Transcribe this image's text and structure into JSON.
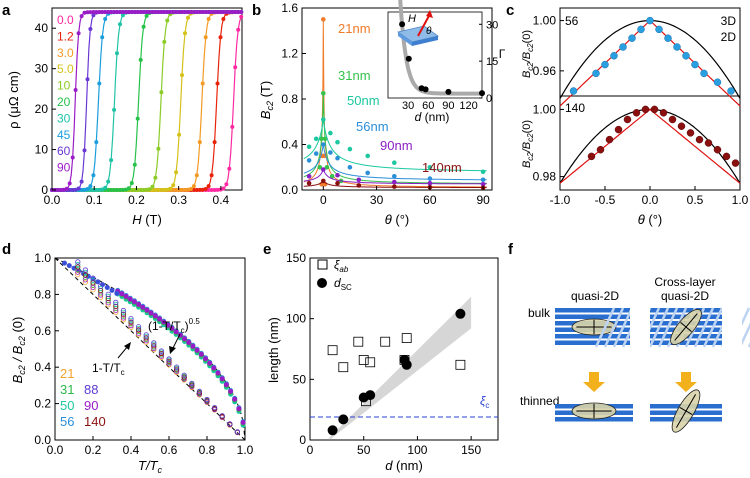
{
  "panel_labels": [
    "a",
    "b",
    "c",
    "d",
    "e",
    "f"
  ],
  "chart_data": [
    {
      "panel": "a",
      "type": "line",
      "xlabel_var": "H",
      "xlabel_unit": "(T)",
      "ylabel": "ρ (μΩ cm)",
      "xlim": [
        0.0,
        0.45
      ],
      "ylim": [
        0,
        45
      ],
      "xticks": [
        "0.0",
        "0.1",
        "0.2",
        "0.3",
        "0.4"
      ],
      "yticks": [
        "0",
        "10",
        "20",
        "30",
        "40"
      ],
      "legend_angles": [
        "0.0",
        "1.2",
        "3.0",
        "5.0",
        "10",
        "20",
        "30",
        "45",
        "60",
        "90"
      ],
      "series": [
        {
          "name": "0.0",
          "color": "#ff2aa2",
          "transition_T": 0.43,
          "width_T": 0.01
        },
        {
          "name": "1.2",
          "color": "#e8230a",
          "transition_T": 0.39,
          "width_T": 0.01
        },
        {
          "name": "3.0",
          "color": "#f39a24",
          "transition_T": 0.355,
          "width_T": 0.01
        },
        {
          "name": "5.0",
          "color": "#d4c21a",
          "transition_T": 0.305,
          "width_T": 0.01
        },
        {
          "name": "10",
          "color": "#8bcc26",
          "transition_T": 0.258,
          "width_T": 0.01
        },
        {
          "name": "20",
          "color": "#27c24a",
          "transition_T": 0.205,
          "width_T": 0.01
        },
        {
          "name": "30",
          "color": "#21c3a7",
          "transition_T": 0.148,
          "width_T": 0.01
        },
        {
          "name": "45",
          "color": "#1b9edc",
          "transition_T": 0.11,
          "width_T": 0.01
        },
        {
          "name": "60",
          "color": "#6a38d4",
          "transition_T": 0.082,
          "width_T": 0.008
        },
        {
          "name": "90",
          "color": "#9a1cc6",
          "transition_T": 0.055,
          "width_T": 0.008
        }
      ],
      "rho_normal": 44
    },
    {
      "panel": "b",
      "type": "line",
      "ylabel": "B",
      "ylabel_sub": "c2",
      "ylabel_unit": " (T)",
      "xlabel_var": "θ",
      "xlabel_unit": " (°)",
      "xlim": [
        -12,
        95
      ],
      "ylim": [
        0,
        1.6
      ],
      "xticks": [
        "0",
        "30",
        "60",
        "90"
      ],
      "yticks": [
        "0.0",
        "0.4",
        "0.8",
        "1.2",
        "1.6"
      ],
      "series": [
        {
          "name": "21nm",
          "color": "#f07b2a",
          "peak": 1.5,
          "base": 0.02,
          "w": 0.4,
          "points": [
            [
              -1,
              0.05
            ],
            [
              -0.5,
              0.3
            ],
            [
              0,
              1.5
            ],
            [
              0.5,
              0.3
            ],
            [
              1,
              0.05
            ]
          ]
        },
        {
          "name": "31nm",
          "color": "#36c24c",
          "peak": 0.85,
          "base": 0.05,
          "w": 1.0,
          "points": [
            [
              -2,
              0.2
            ],
            [
              -1,
              0.45
            ],
            [
              0,
              0.85
            ],
            [
              1,
              0.45
            ],
            [
              2,
              0.2
            ],
            [
              5,
              0.12
            ],
            [
              10,
              0.08
            ]
          ]
        },
        {
          "name": "50nm",
          "color": "#1cc8a0",
          "peak": 0.62,
          "base": 0.15,
          "w": 4,
          "points": [
            [
              -8,
              0.38
            ],
            [
              -4,
              0.45
            ],
            [
              0,
              0.62
            ],
            [
              4,
              0.5
            ],
            [
              8,
              0.42
            ],
            [
              15,
              0.36
            ],
            [
              25,
              0.3
            ],
            [
              40,
              0.24
            ],
            [
              60,
              0.2
            ],
            [
              90,
              0.16
            ]
          ]
        },
        {
          "name": "56nm",
          "color": "#2a8fd8",
          "peak": 0.4,
          "base": 0.08,
          "w": 3,
          "points": [
            [
              -8,
              0.26
            ],
            [
              -4,
              0.32
            ],
            [
              0,
              0.4
            ],
            [
              4,
              0.33
            ],
            [
              8,
              0.28
            ],
            [
              15,
              0.2
            ],
            [
              25,
              0.15
            ],
            [
              40,
              0.12
            ],
            [
              60,
              0.1
            ],
            [
              90,
              0.09
            ]
          ]
        },
        {
          "name": "90nm",
          "color": "#8a1fc4",
          "peak": 0.18,
          "base": 0.05,
          "w": 3,
          "points": [
            [
              -8,
              0.12
            ],
            [
              0,
              0.18
            ],
            [
              8,
              0.13
            ],
            [
              20,
              0.09
            ],
            [
              40,
              0.07
            ],
            [
              60,
              0.06
            ],
            [
              90,
              0.05
            ]
          ]
        },
        {
          "name": "140nm",
          "color": "#8a1010",
          "peak": 0.08,
          "base": 0.02,
          "w": 3,
          "points": [
            [
              -8,
              0.06
            ],
            [
              0,
              0.08
            ],
            [
              8,
              0.06
            ],
            [
              20,
              0.04
            ],
            [
              40,
              0.03
            ],
            [
              60,
              0.025
            ],
            [
              90,
              0.02
            ]
          ]
        }
      ],
      "inset": {
        "xlabel_var": "d",
        "xlabel_unit": " (nm)",
        "ylabel": "Γ",
        "xlim": [
          0,
          140
        ],
        "ylim": [
          0,
          35
        ],
        "xticks": [
          "30",
          "60",
          "90",
          "120"
        ],
        "yticks": [
          "0",
          "15",
          "30"
        ],
        "points": [
          [
            21,
            30
          ],
          [
            31,
            16
          ],
          [
            50,
            4
          ],
          [
            56,
            3.5
          ],
          [
            90,
            2.5
          ],
          [
            140,
            2
          ]
        ],
        "H_label": "H",
        "theta_label": "θ"
      }
    },
    {
      "panel": "c",
      "type": "scatter",
      "ylabel": "B",
      "ylabel_sub": "c2",
      "ylabel_mid": "/B",
      "ylabel_end": "(0)",
      "xlabel_var": "θ",
      "xlabel_unit": " (°)",
      "legend": [
        {
          "name": "3D",
          "color": "#000000"
        },
        {
          "name": "2D",
          "color": "#e01010"
        }
      ],
      "top": {
        "label": "56",
        "label_color": "#2a9fe0",
        "xlim": [
          -1,
          1
        ],
        "ylim": [
          0.94,
          1.01
        ],
        "yticks": [
          "0.96",
          "1.00"
        ],
        "points": [
          [
            -0.85,
            0.944
          ],
          [
            -0.6,
            0.958
          ],
          [
            -0.5,
            0.965
          ],
          [
            -0.4,
            0.972
          ],
          [
            -0.3,
            0.979
          ],
          [
            -0.2,
            0.986
          ],
          [
            -0.1,
            0.993
          ],
          [
            0,
            1.0
          ],
          [
            0.1,
            0.993
          ],
          [
            0.2,
            0.986
          ],
          [
            0.3,
            0.979
          ],
          [
            0.4,
            0.972
          ],
          [
            0.5,
            0.965
          ],
          [
            0.6,
            0.958
          ],
          [
            0.75,
            0.951
          ],
          [
            0.9,
            0.944
          ]
        ]
      },
      "bottom": {
        "label": "140",
        "label_color": "#8a1010",
        "xlim": [
          -1,
          1
        ],
        "ylim": [
          0.976,
          1.004
        ],
        "yticks": [
          "0.98",
          "1.00"
        ],
        "xticks": [
          "-1.0",
          "-0.5",
          "0.0",
          "0.5",
          "1.0"
        ],
        "points": [
          [
            -0.65,
            0.986
          ],
          [
            -0.55,
            0.988
          ],
          [
            -0.45,
            0.991
          ],
          [
            -0.35,
            0.994
          ],
          [
            -0.25,
            0.997
          ],
          [
            -0.15,
            0.999
          ],
          [
            -0.05,
            1.0
          ],
          [
            0.05,
            1.0
          ],
          [
            0.15,
            0.999
          ],
          [
            0.25,
            0.997
          ],
          [
            0.35,
            0.995
          ],
          [
            0.45,
            0.993
          ],
          [
            0.55,
            0.991
          ],
          [
            0.65,
            0.99
          ],
          [
            0.75,
            0.988
          ],
          [
            0.85,
            0.986
          ],
          [
            0.95,
            0.984
          ]
        ]
      }
    },
    {
      "panel": "d",
      "type": "scatter",
      "ylabel": "B",
      "ylabel_sub": "c2",
      "ylabel_mid": " / B",
      "ylabel_end": " (0)",
      "xlabel": "T/T",
      "xlabel_sub": "c",
      "xlim": [
        0,
        1.0
      ],
      "ylim": [
        0,
        1.0
      ],
      "xticks": [
        "0.0",
        "0.2",
        "0.4",
        "0.6",
        "0.8",
        "1.0"
      ],
      "yticks": [
        "0.0",
        "0.2",
        "0.4",
        "0.6",
        "0.8",
        "1.0"
      ],
      "annotation_sqrt": "(1-T/T",
      "annotation_sqrt_end": ")",
      "annotation_sqrt_exp": "0.5",
      "annotation_lin": "1-T/T",
      "annotation_sub": "c",
      "legend": [
        {
          "name": "21",
          "color": "#f3a22a"
        },
        {
          "name": "31",
          "color": "#2db84a"
        },
        {
          "name": "88",
          "color": "#5b3bd2"
        },
        {
          "name": "50",
          "color": "#1cc8a0"
        },
        {
          "name": "90",
          "color": "#9a1cc6"
        },
        {
          "name": "56",
          "color": "#2a8fd8"
        },
        {
          "name": "140",
          "color": "#8a1010"
        }
      ]
    },
    {
      "panel": "e",
      "type": "scatter",
      "ylabel": "length (nm)",
      "xlabel_var": "d",
      "xlabel_unit": " (nm)",
      "xlim": [
        0,
        175
      ],
      "ylim": [
        0,
        150
      ],
      "xticks": [
        "0",
        "50",
        "100",
        "150"
      ],
      "yticks": [
        "0",
        "50",
        "100",
        "150"
      ],
      "xi_c": 19,
      "xi_c_label": "ξ",
      "xi_c_sub": "c",
      "legend": [
        {
          "name": "ξ",
          "sub": "ab",
          "marker": "open-square"
        },
        {
          "name": "d",
          "sub": "SC",
          "marker": "filled-circle"
        }
      ],
      "series": [
        {
          "name": "xi_ab",
          "marker": "open-square",
          "points": [
            [
              21,
              74
            ],
            [
              31,
              60
            ],
            [
              45,
              81
            ],
            [
              50,
              66
            ],
            [
              52,
              32
            ],
            [
              56,
              64
            ],
            [
              70,
              81
            ],
            [
              88,
              66
            ],
            [
              90,
              84
            ],
            [
              140,
              62
            ]
          ]
        },
        {
          "name": "d_SC",
          "marker": "filled-circle",
          "points": [
            [
              21,
              8
            ],
            [
              31,
              17
            ],
            [
              50,
              35
            ],
            [
              56,
              37
            ],
            [
              90,
              62
            ],
            [
              88,
              66
            ],
            [
              140,
              104
            ]
          ]
        }
      ]
    }
  ],
  "panel_f": {
    "col1_title": "quasi-2D",
    "col2_title_line1": "Cross-layer",
    "col2_title_line2": "quasi-2D",
    "row1_label": "bulk",
    "row2_label": "thinned",
    "layer_color": "#2a6fd0",
    "arrow_color": "#f2b01c"
  }
}
